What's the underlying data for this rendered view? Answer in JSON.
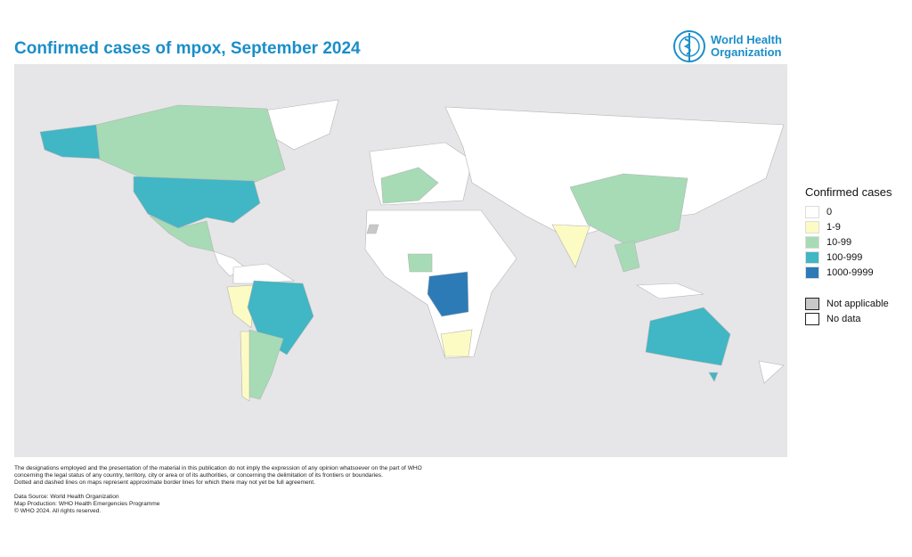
{
  "header": {
    "title": "Confirmed cases of mpox, September 2024",
    "logo": [
      "World Health",
      "Organization"
    ]
  },
  "legend": {
    "title": "Confirmed cases",
    "classes": [
      {
        "label": "0",
        "color": "#ffffff"
      },
      {
        "label": "1-9",
        "color": "#fdfbc4"
      },
      {
        "label": "10-99",
        "color": "#a6dbb5"
      },
      {
        "label": "100-999",
        "color": "#41b6c4"
      },
      {
        "label": "1000-9999",
        "color": "#2c7bb6"
      }
    ],
    "other": [
      {
        "label": "Not applicable",
        "color": "#c8c8c8"
      },
      {
        "label": "No data",
        "color": "#ffffff"
      }
    ]
  },
  "footer": {
    "disclaimer": [
      "The designations employed and the presentation of the material in this publication do not imply the expression of any opinion whatsoever on the part of WHO",
      "concerning the legal status of any country, territory, city or area or of its authorities, or concerning the delimitation of its frontiers or boundaries.",
      "Dotted and dashed lines on maps represent approximate border lines for which there may not yet be full agreement."
    ],
    "source": [
      "Data Source: World Health Organization",
      "Map Production: WHO Health Emergencies Programme",
      "© WHO 2024. All rights reserved."
    ]
  }
}
